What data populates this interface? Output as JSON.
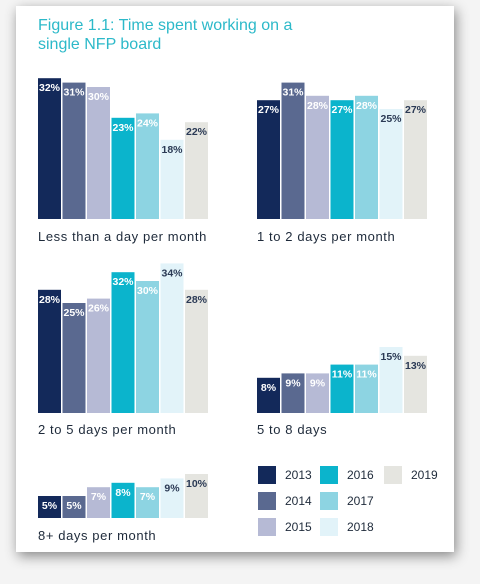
{
  "title": "Figure 1.1: Time spent working on a single NFP board",
  "legend": [
    {
      "label": "2013",
      "color": "#13295a"
    },
    {
      "label": "2014",
      "color": "#5a6990"
    },
    {
      "label": "2015",
      "color": "#b6bad5"
    },
    {
      "label": "2016",
      "color": "#0bb4cc"
    },
    {
      "label": "2017",
      "color": "#8dd4e2"
    },
    {
      "label": "2018",
      "color": "#e2f3f9"
    },
    {
      "label": "2019",
      "color": "#e5e5e0"
    }
  ],
  "chart_data": [
    {
      "type": "bar",
      "title": "Less than a day per month",
      "categories": [
        "2013",
        "2014",
        "2015",
        "2016",
        "2017",
        "2018",
        "2019"
      ],
      "values": [
        32,
        31,
        30,
        23,
        24,
        18,
        22
      ],
      "data_labels": [
        "32%",
        "31%",
        "30%",
        "23%",
        "24%",
        "18%",
        "22%"
      ]
    },
    {
      "type": "bar",
      "title": "1 to 2 days per month",
      "categories": [
        "2013",
        "2014",
        "2015",
        "2016",
        "2017",
        "2018",
        "2019"
      ],
      "values": [
        27,
        31,
        28,
        27,
        28,
        25,
        27
      ],
      "data_labels": [
        "27%",
        "31%",
        "28%",
        "27%",
        "28%",
        "25%",
        "27%"
      ]
    },
    {
      "type": "bar",
      "title": "2 to 5 days per month",
      "categories": [
        "2013",
        "2014",
        "2015",
        "2016",
        "2017",
        "2018",
        "2019"
      ],
      "values": [
        28,
        25,
        26,
        32,
        30,
        34,
        28
      ],
      "data_labels": [
        "28%",
        "25%",
        "26%",
        "32%",
        "30%",
        "34%",
        "28%"
      ]
    },
    {
      "type": "bar",
      "title": "5 to 8 days",
      "categories": [
        "2013",
        "2014",
        "2015",
        "2016",
        "2017",
        "2018",
        "2019"
      ],
      "values": [
        8,
        9,
        9,
        11,
        11,
        15,
        13
      ],
      "data_labels": [
        "8%",
        "9%",
        "9%",
        "11%",
        "11%",
        "15%",
        "13%"
      ]
    },
    {
      "type": "bar",
      "title": "8+ days per month",
      "categories": [
        "2013",
        "2014",
        "2015",
        "2016",
        "2017",
        "2018",
        "2019"
      ],
      "values": [
        5,
        5,
        7,
        8,
        7,
        9,
        10
      ],
      "data_labels": [
        "5%",
        "5%",
        "7%",
        "8%",
        "7%",
        "9%",
        "10%"
      ]
    }
  ]
}
